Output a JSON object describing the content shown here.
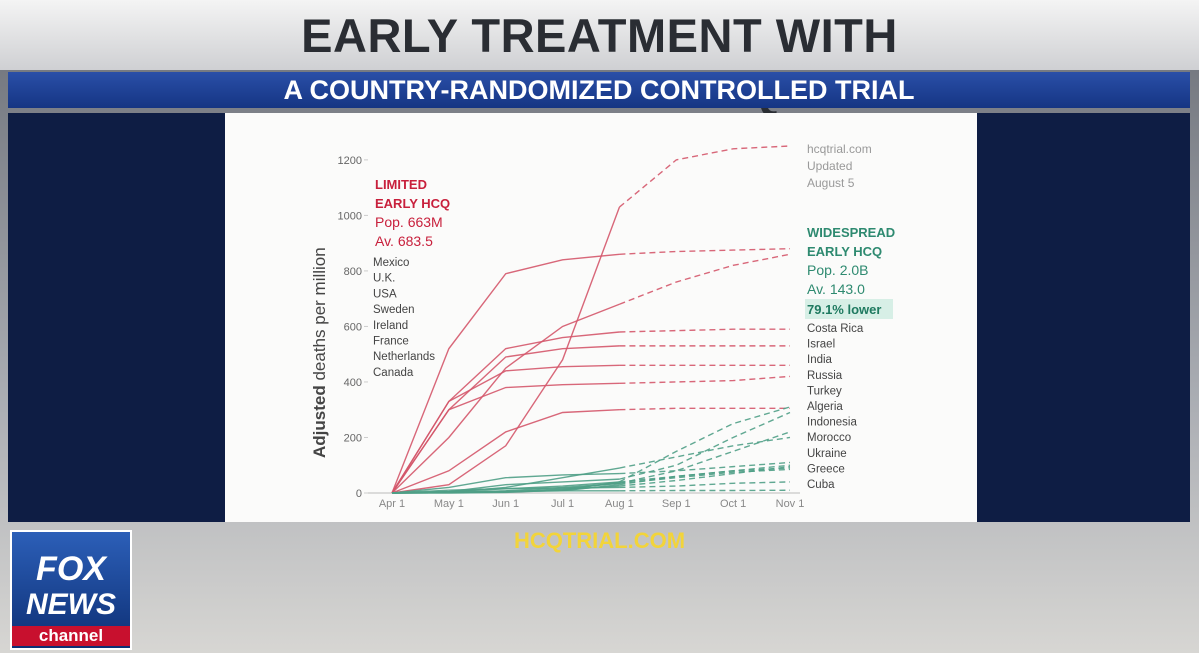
{
  "header": {
    "title": "EARLY TREATMENT WITH HYDROXYCHLOROQUINE",
    "subtitle": "A COUNTRY-RANDOMIZED CONTROLLED TRIAL"
  },
  "footer": {
    "url": "HCQTRIAL.COM"
  },
  "logo": {
    "line1": "FOX",
    "line2": "NEWS",
    "line3": "channel"
  },
  "chart_data": {
    "type": "line",
    "y_label_bold": "Adjusted",
    "y_label": "deaths per million",
    "categories": [
      "Apr 1",
      "May 1",
      "Jun 1",
      "Jul 1",
      "Aug 1",
      "Sep 1",
      "Oct 1",
      "Nov 1"
    ],
    "ylim": [
      0,
      1250
    ],
    "yticks": [
      0,
      200,
      400,
      600,
      800,
      1000,
      1200
    ],
    "projection_start": 4,
    "annotations": {
      "limited": [
        "LIMITED",
        "EARLY HCQ"
      ],
      "limited_stats": [
        "Pop. 663M",
        "Av. 683.5"
      ],
      "widespread": [
        "WIDESPREAD",
        "EARLY HCQ"
      ],
      "widespread_stats": [
        "Pop. 2.0B",
        "Av. 143.0"
      ],
      "difference": "79.1% lower",
      "source": [
        "hcqtrial.com",
        "Updated",
        "August 5"
      ]
    },
    "series": [
      {
        "name": "Mexico",
        "color": "#d4566a",
        "values": [
          0,
          30,
          170,
          480,
          1030,
          1200,
          1240,
          1250
        ]
      },
      {
        "name": "U.K.",
        "color": "#d4566a",
        "values": [
          0,
          520,
          790,
          840,
          860,
          870,
          875,
          880
        ]
      },
      {
        "name": "USA",
        "color": "#d4566a",
        "values": [
          0,
          200,
          450,
          600,
          680,
          760,
          820,
          860
        ]
      },
      {
        "name": "Sweden",
        "color": "#d4566a",
        "values": [
          0,
          330,
          520,
          560,
          580,
          585,
          590,
          590
        ]
      },
      {
        "name": "Ireland",
        "color": "#d4566a",
        "values": [
          0,
          300,
          490,
          520,
          530,
          530,
          530,
          530
        ]
      },
      {
        "name": "France",
        "color": "#d4566a",
        "values": [
          0,
          330,
          440,
          455,
          460,
          460,
          460,
          460
        ]
      },
      {
        "name": "Netherlands",
        "color": "#d4566a",
        "values": [
          0,
          300,
          380,
          390,
          395,
          400,
          405,
          420
        ]
      },
      {
        "name": "Canada",
        "color": "#d4566a",
        "values": [
          0,
          80,
          220,
          290,
          300,
          305,
          305,
          305
        ]
      },
      {
        "name": "Costa Rica",
        "color": "#4f9e86",
        "values": [
          0,
          0,
          2,
          10,
          40,
          150,
          250,
          310
        ]
      },
      {
        "name": "Israel",
        "color": "#4f9e86",
        "values": [
          0,
          5,
          30,
          40,
          50,
          100,
          200,
          290
        ]
      },
      {
        "name": "India",
        "color": "#4f9e86",
        "values": [
          0,
          1,
          4,
          15,
          35,
          80,
          150,
          220
        ]
      },
      {
        "name": "Russia",
        "color": "#4f9e86",
        "values": [
          0,
          3,
          20,
          55,
          90,
          130,
          170,
          200
        ]
      },
      {
        "name": "Turkey",
        "color": "#4f9e86",
        "values": [
          0,
          20,
          55,
          65,
          70,
          80,
          95,
          110
        ]
      },
      {
        "name": "Algeria",
        "color": "#4f9e86",
        "values": [
          0,
          5,
          15,
          25,
          40,
          60,
          80,
          100
        ]
      },
      {
        "name": "Indonesia",
        "color": "#4f9e86",
        "values": [
          0,
          1,
          5,
          12,
          25,
          45,
          70,
          95
        ]
      },
      {
        "name": "Morocco",
        "color": "#4f9e86",
        "values": [
          0,
          1,
          5,
          8,
          30,
          60,
          80,
          90
        ]
      },
      {
        "name": "Ukraine",
        "color": "#4f9e86",
        "values": [
          0,
          2,
          8,
          20,
          35,
          55,
          75,
          85
        ]
      },
      {
        "name": "Greece",
        "color": "#4f9e86",
        "values": [
          0,
          10,
          16,
          18,
          20,
          25,
          35,
          40
        ]
      },
      {
        "name": "Cuba",
        "color": "#4f9e86",
        "values": [
          0,
          4,
          7,
          8,
          8,
          9,
          9,
          10
        ]
      }
    ]
  }
}
